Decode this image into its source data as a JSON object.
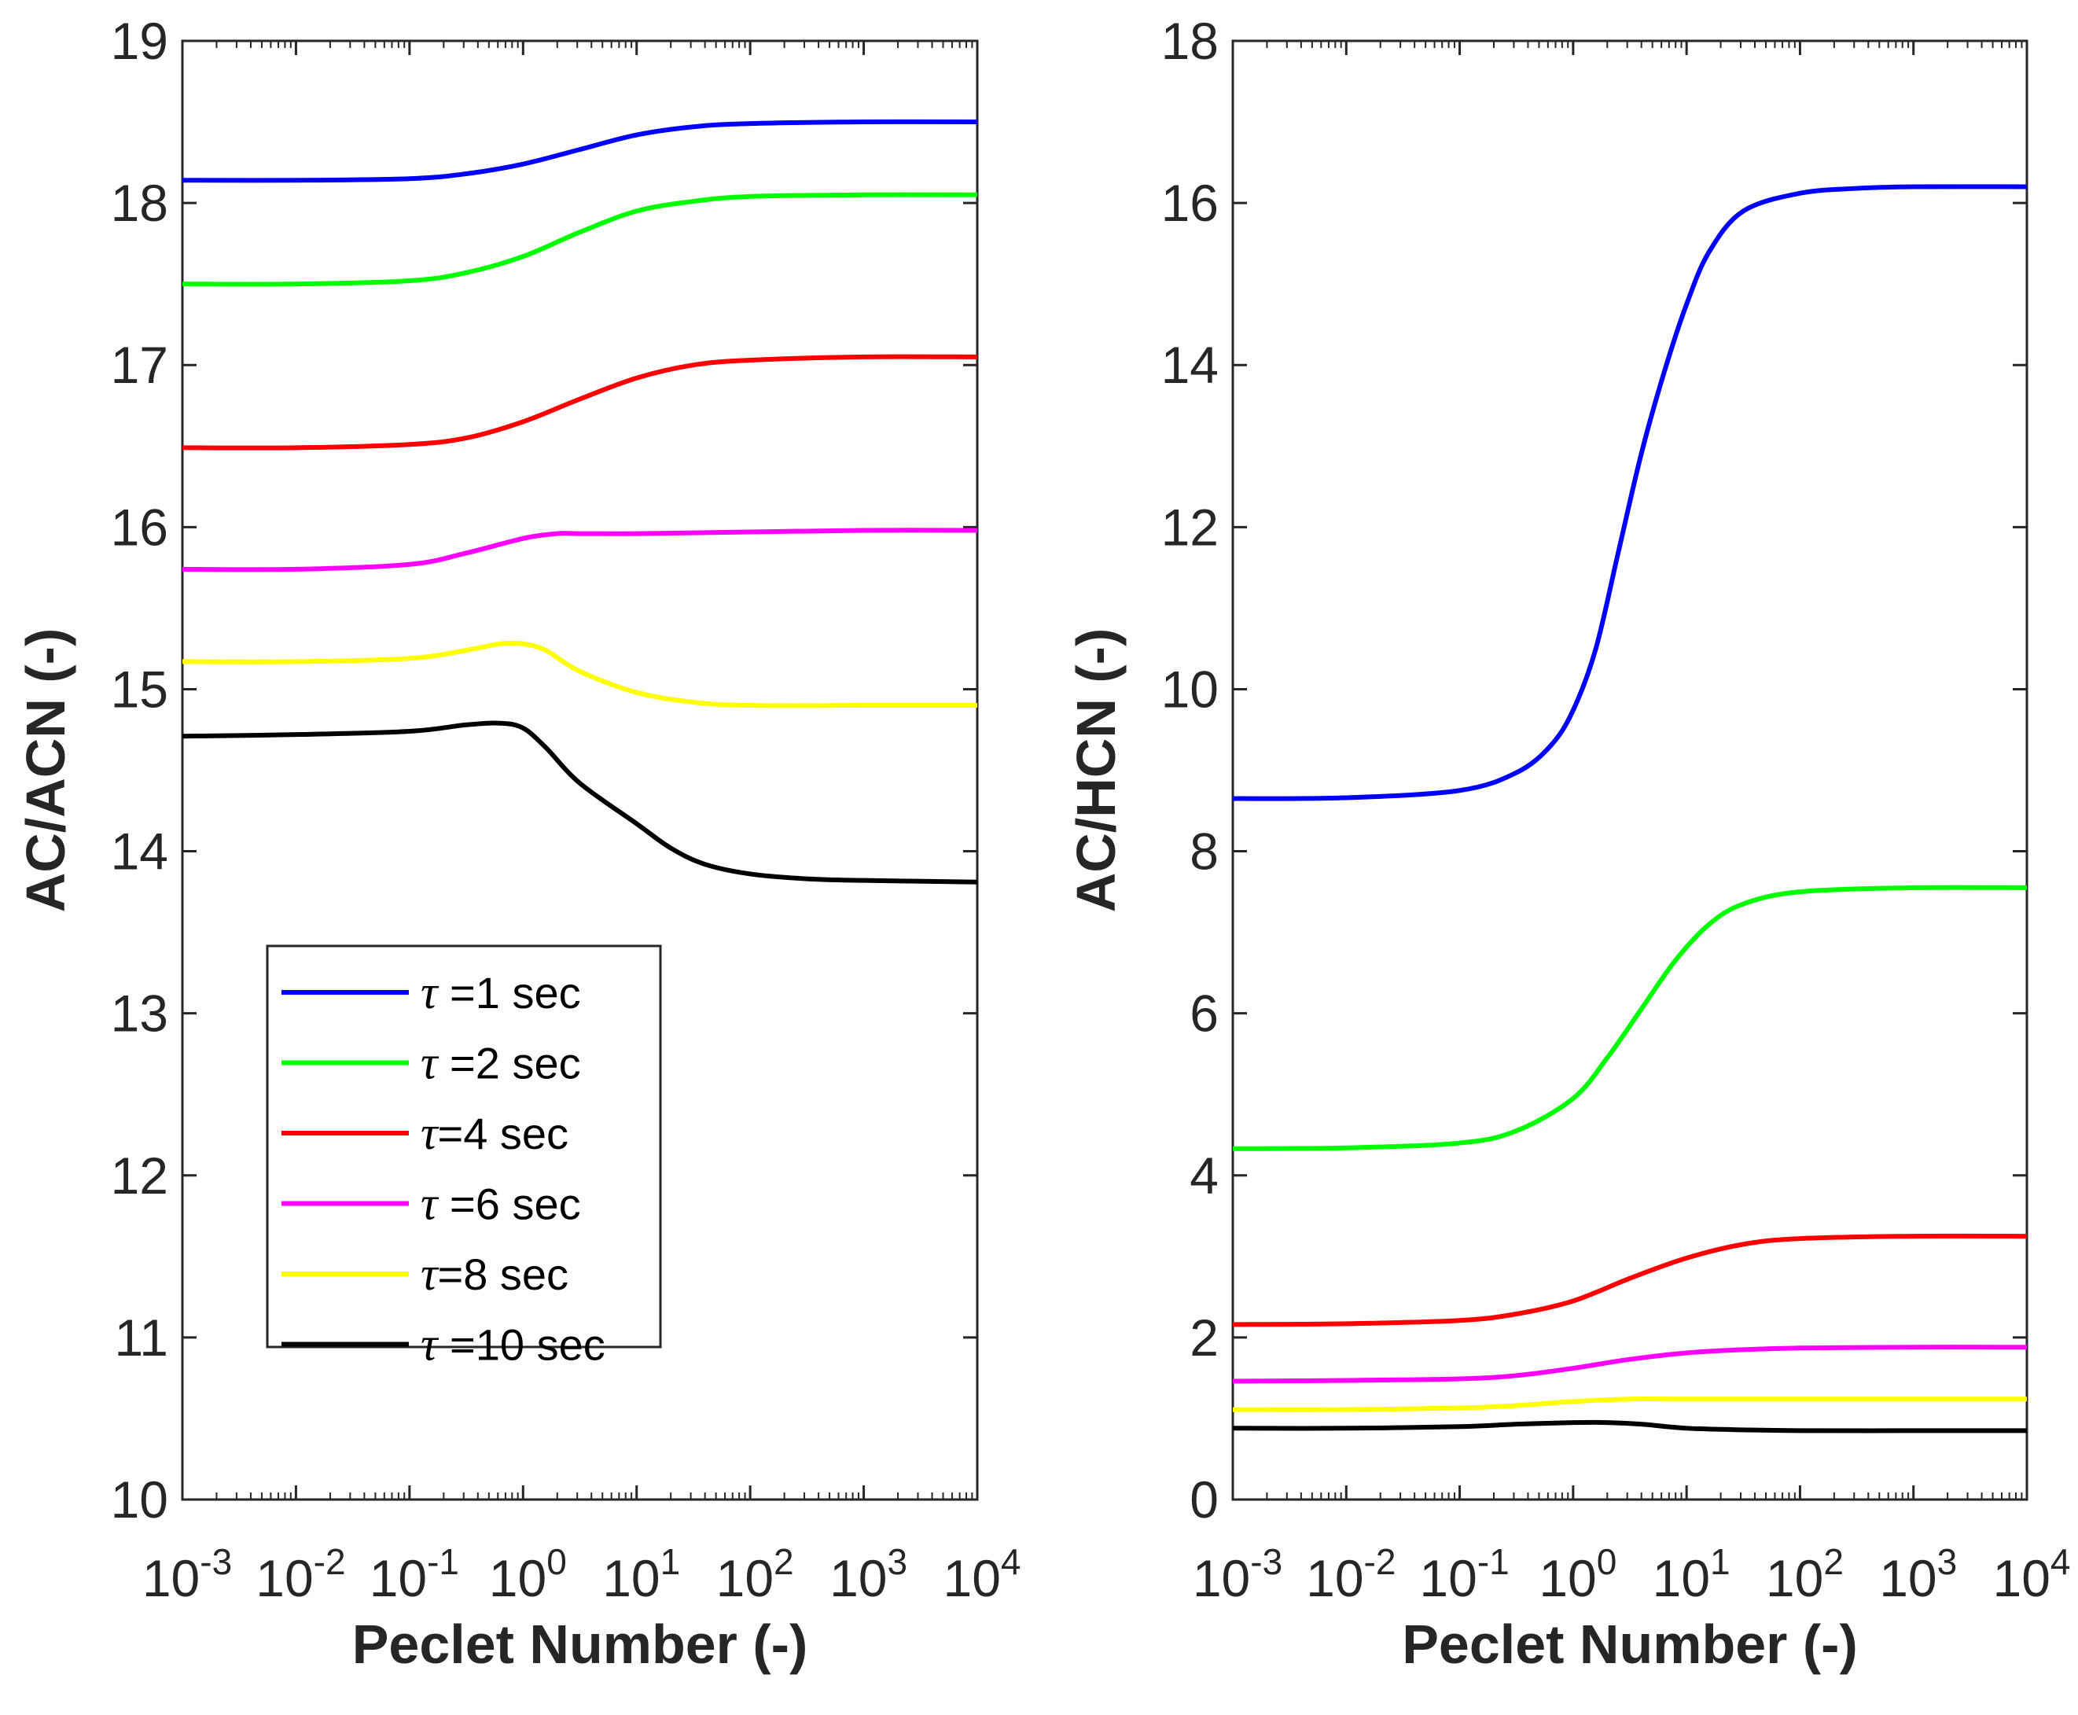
{
  "chart_data": [
    {
      "type": "line",
      "xscale": "log",
      "xlabel": "Peclet Number (-)",
      "ylabel": "AC/ACN (-)",
      "xlim_exp": [
        -3,
        4
      ],
      "ylim": [
        10,
        19
      ],
      "yticks": [
        10,
        11,
        12,
        13,
        14,
        15,
        16,
        17,
        18,
        19
      ],
      "xtick_exponents": [
        "-3",
        "-2",
        "-1",
        "0",
        "1",
        "2",
        "3",
        "4"
      ],
      "xtick_base": "10",
      "legend": {
        "position": "lower-left",
        "entries": [
          {
            "symbol": "τ",
            "text": " =1 sec"
          },
          {
            "symbol": "τ",
            "text": " =2 sec"
          },
          {
            "symbol": "τ",
            "text": "=4 sec"
          },
          {
            "symbol": "τ",
            "text": " =6 sec"
          },
          {
            "symbol": "τ",
            "text": "=8 sec"
          },
          {
            "symbol": "τ",
            "text": " =10 sec"
          }
        ]
      },
      "series": [
        {
          "name": "τ =1 sec",
          "color": "#0000ff",
          "log10_x": [
            -3,
            -2,
            -1,
            -0.5,
            0,
            0.5,
            1,
            1.5,
            2,
            3,
            4
          ],
          "y": [
            18.14,
            18.14,
            18.15,
            18.18,
            18.24,
            18.33,
            18.42,
            18.47,
            18.49,
            18.5,
            18.5
          ]
        },
        {
          "name": "τ =2 sec",
          "color": "#00ff00",
          "log10_x": [
            -3,
            -2,
            -1,
            -0.5,
            0,
            0.5,
            1,
            1.5,
            2,
            3,
            4
          ],
          "y": [
            17.5,
            17.5,
            17.52,
            17.57,
            17.67,
            17.82,
            17.95,
            18.01,
            18.04,
            18.05,
            18.05
          ]
        },
        {
          "name": "τ=4 sec",
          "color": "#ff0000",
          "log10_x": [
            -3,
            -2,
            -1,
            -0.5,
            0,
            0.5,
            1,
            1.5,
            2,
            3,
            4
          ],
          "y": [
            16.49,
            16.49,
            16.51,
            16.55,
            16.65,
            16.79,
            16.92,
            17.0,
            17.03,
            17.05,
            17.05
          ]
        },
        {
          "name": "τ =6 sec",
          "color": "#ff00ff",
          "log10_x": [
            -3,
            -2,
            -1,
            -0.5,
            0,
            0.3,
            0.5,
            1,
            2,
            3,
            4
          ],
          "y": [
            15.74,
            15.74,
            15.77,
            15.84,
            15.93,
            15.96,
            15.96,
            15.96,
            15.97,
            15.98,
            15.98
          ]
        },
        {
          "name": "τ=8 sec",
          "color": "#ffff00",
          "log10_x": [
            -3,
            -2,
            -1,
            -0.5,
            -0.2,
            0,
            0.2,
            0.5,
            1,
            1.5,
            2,
            3,
            4
          ],
          "y": [
            15.17,
            15.17,
            15.19,
            15.24,
            15.28,
            15.28,
            15.24,
            15.11,
            14.98,
            14.92,
            14.9,
            14.9,
            14.9
          ]
        },
        {
          "name": "τ =10 sec",
          "color": "#000000",
          "log10_x": [
            -3,
            -2,
            -1,
            -0.5,
            -0.2,
            0,
            0.2,
            0.5,
            1,
            1.3,
            1.6,
            2,
            2.5,
            3,
            4
          ],
          "y": [
            14.71,
            14.72,
            14.74,
            14.78,
            14.79,
            14.76,
            14.64,
            14.42,
            14.17,
            14.02,
            13.92,
            13.86,
            13.83,
            13.82,
            13.81
          ]
        }
      ]
    },
    {
      "type": "line",
      "xscale": "log",
      "xlabel": "Peclet Number (-)",
      "ylabel": "AC/HCN (-)",
      "xlim_exp": [
        -3,
        4
      ],
      "ylim": [
        0,
        18
      ],
      "yticks": [
        0,
        2,
        4,
        6,
        8,
        10,
        12,
        14,
        16,
        18
      ],
      "xtick_exponents": [
        "-3",
        "-2",
        "-1",
        "0",
        "1",
        "2",
        "3",
        "4"
      ],
      "xtick_base": "10",
      "series": [
        {
          "name": "τ =1 sec",
          "color": "#0000ff",
          "log10_x": [
            -3,
            -2,
            -1,
            -0.5,
            -0.2,
            0,
            0.2,
            0.4,
            0.6,
            0.8,
            1,
            1.2,
            1.5,
            2,
            2.5,
            3,
            4
          ],
          "y": [
            8.65,
            8.66,
            8.75,
            8.97,
            9.3,
            9.74,
            10.5,
            11.7,
            12.9,
            13.9,
            14.75,
            15.4,
            15.9,
            16.12,
            16.18,
            16.2,
            16.2
          ]
        },
        {
          "name": "τ =2 sec",
          "color": "#00ff00",
          "log10_x": [
            -3,
            -2,
            -1,
            -0.5,
            0,
            0.3,
            0.6,
            0.9,
            1.2,
            1.5,
            2,
            3,
            4
          ],
          "y": [
            4.33,
            4.34,
            4.4,
            4.55,
            4.95,
            5.45,
            6.05,
            6.65,
            7.1,
            7.35,
            7.5,
            7.55,
            7.55
          ]
        },
        {
          "name": "τ=4 sec",
          "color": "#ff0000",
          "log10_x": [
            -3,
            -2,
            -1,
            -0.5,
            0,
            0.5,
            1,
            1.5,
            2,
            3,
            4
          ],
          "y": [
            2.16,
            2.17,
            2.21,
            2.29,
            2.45,
            2.73,
            2.98,
            3.15,
            3.22,
            3.25,
            3.25
          ]
        },
        {
          "name": "τ =6 sec",
          "color": "#ff00ff",
          "log10_x": [
            -3,
            -2,
            -1,
            -0.5,
            0,
            0.5,
            1,
            1.5,
            2,
            3,
            4
          ],
          "y": [
            1.46,
            1.47,
            1.49,
            1.53,
            1.62,
            1.73,
            1.81,
            1.85,
            1.87,
            1.88,
            1.88
          ]
        },
        {
          "name": "τ=8 sec",
          "color": "#ffff00",
          "log10_x": [
            -3,
            -2,
            -1,
            -0.5,
            0,
            0.5,
            1,
            2,
            3,
            4
          ],
          "y": [
            1.11,
            1.11,
            1.13,
            1.16,
            1.21,
            1.24,
            1.24,
            1.24,
            1.24,
            1.24
          ]
        },
        {
          "name": "τ =10 sec",
          "color": "#000000",
          "log10_x": [
            -3,
            -2,
            -1,
            -0.5,
            0,
            0.3,
            0.6,
            1,
            1.5,
            2,
            3,
            4
          ],
          "y": [
            0.88,
            0.88,
            0.9,
            0.93,
            0.95,
            0.95,
            0.93,
            0.88,
            0.86,
            0.85,
            0.85,
            0.85
          ]
        }
      ]
    }
  ]
}
